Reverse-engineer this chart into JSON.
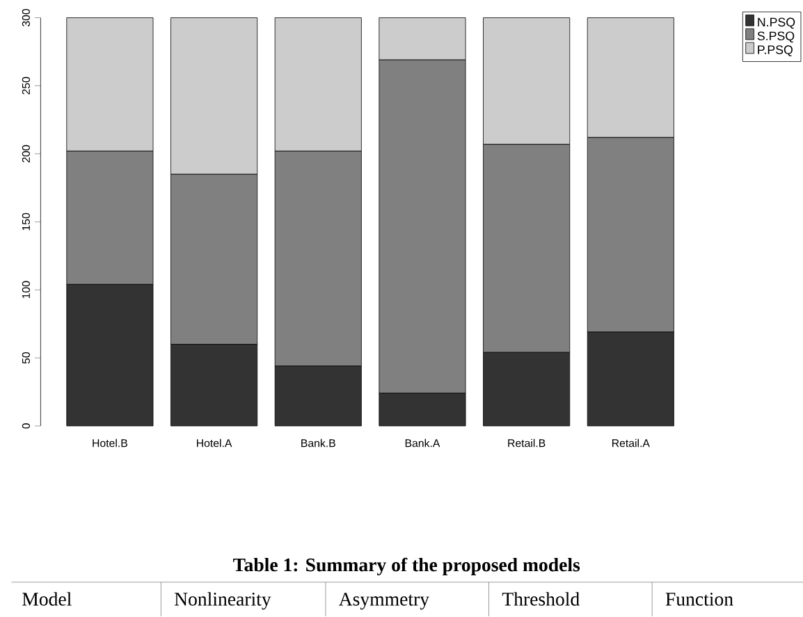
{
  "chart_data": {
    "type": "bar",
    "stacked": true,
    "categories": [
      "Hotel.B",
      "Hotel.A",
      "Bank.B",
      "Bank.A",
      "Retail.B",
      "Retail.A"
    ],
    "series": [
      {
        "name": "N.PSQ",
        "color": "#333333",
        "values": [
          104,
          60,
          44,
          24,
          54,
          69
        ]
      },
      {
        "name": "S.PSQ",
        "color": "#808080",
        "values": [
          98,
          125,
          158,
          245,
          153,
          143
        ]
      },
      {
        "name": "P.PSQ",
        "color": "#cccccc",
        "values": [
          98,
          115,
          98,
          31,
          93,
          88
        ]
      }
    ],
    "ylim": [
      0,
      300
    ],
    "yticks": [
      0,
      50,
      100,
      150,
      200,
      250,
      300
    ],
    "legend": "top right",
    "grid": false,
    "annotations": [
      "Table 1: Summary of the proposed models",
      "Model",
      "Nonlinearity",
      "Asymmetry",
      "Threshold",
      "Function"
    ]
  }
}
